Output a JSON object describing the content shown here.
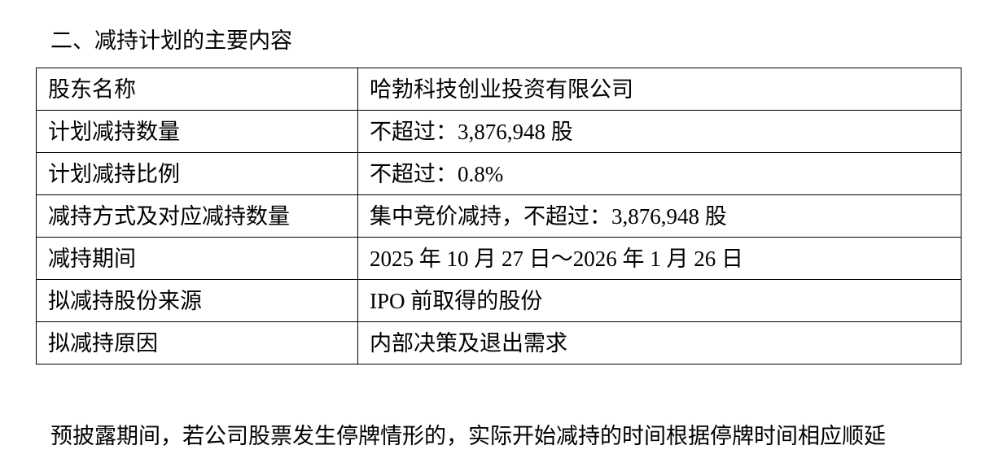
{
  "heading": "二、减持计划的主要内容",
  "rows": [
    {
      "label": "股东名称",
      "value": "哈勃科技创业投资有限公司"
    },
    {
      "label": "计划减持数量",
      "value": "不超过：3,876,948 股"
    },
    {
      "label": "计划减持比例",
      "value": "不超过：0.8%"
    },
    {
      "label": "减持方式及对应减持数量",
      "value": "集中竞价减持，不超过：3,876,948 股"
    },
    {
      "label": "减持期间",
      "value": "2025 年 10 月 27 日～2026 年 1 月 26 日"
    },
    {
      "label": "拟减持股份来源",
      "value": "IPO 前取得的股份"
    },
    {
      "label": "拟减持原因",
      "value": "内部决策及退出需求"
    }
  ],
  "paragraph": "预披露期间，若公司股票发生停牌情形的，实际开始减持的时间根据停牌时间相应顺延"
}
